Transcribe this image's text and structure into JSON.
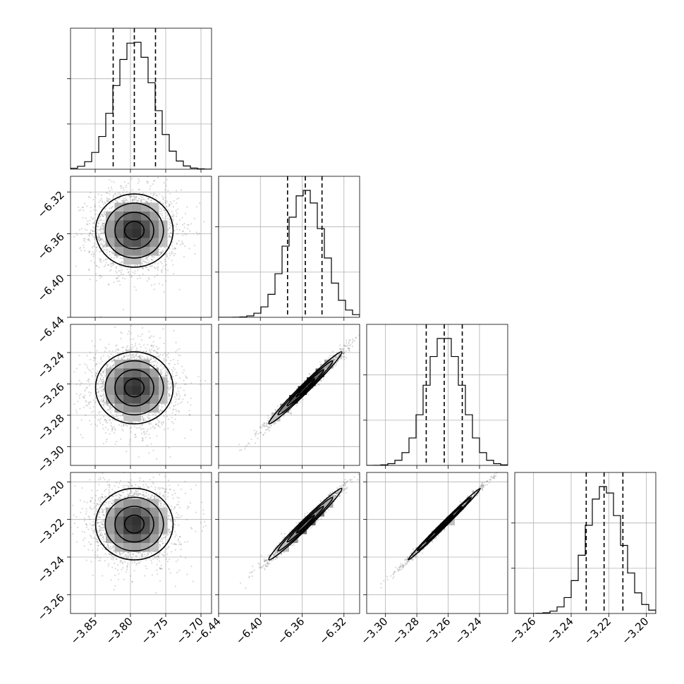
{
  "chart_data": {
    "type": "corner",
    "title": "",
    "grid": true,
    "quantile_lines": "dashed",
    "parameters": [
      {
        "range": [
          -3.885,
          -3.685
        ],
        "ticks": [
          {
            "v": -3.85,
            "label": "−3.85"
          },
          {
            "v": -3.8,
            "label": "−3.80"
          },
          {
            "v": -3.75,
            "label": "−3.75"
          },
          {
            "v": -3.7,
            "label": "−3.70"
          }
        ],
        "mean": -3.7945,
        "sd": 0.0275,
        "quantiles": [
          -3.8245,
          -3.7945,
          -3.7645
        ]
      },
      {
        "range": [
          -6.44,
          -6.305
        ],
        "ticks": [
          {
            "v": -6.44,
            "label": "−6.44"
          },
          {
            "v": -6.4,
            "label": "−6.40"
          },
          {
            "v": -6.36,
            "label": "−6.36"
          },
          {
            "v": -6.32,
            "label": "−6.32"
          }
        ],
        "mean": -6.357,
        "sd": 0.0175,
        "quantiles": [
          -6.374,
          -6.357,
          -6.341
        ]
      },
      {
        "range": [
          -3.312,
          -3.222
        ],
        "ticks": [
          {
            "v": -3.3,
            "label": "−3.30"
          },
          {
            "v": -3.28,
            "label": "−3.28"
          },
          {
            "v": -3.26,
            "label": "−3.26"
          },
          {
            "v": -3.24,
            "label": "−3.24"
          }
        ],
        "mean": -3.2625,
        "sd": 0.0115,
        "quantiles": [
          -3.274,
          -3.2625,
          -3.251
        ]
      },
      {
        "range": [
          -3.27,
          -3.195
        ],
        "ticks": [
          {
            "v": -3.26,
            "label": "−3.26"
          },
          {
            "v": -3.24,
            "label": "−3.24"
          },
          {
            "v": -3.22,
            "label": "−3.22"
          },
          {
            "v": -3.2,
            "label": "−3.20"
          }
        ],
        "mean": -3.2225,
        "sd": 0.0095,
        "quantiles": [
          -3.232,
          -3.2225,
          -3.2125
        ]
      }
    ],
    "correlations": [
      [
        1,
        0.0,
        0.0,
        0.0
      ],
      [
        0.0,
        1,
        0.985,
        0.985
      ],
      [
        0.0,
        0.985,
        1,
        0.995
      ],
      [
        0.0,
        0.985,
        0.995,
        1
      ]
    ],
    "contour_levels": [
      0.5,
      1.0,
      1.5,
      2.0
    ]
  }
}
